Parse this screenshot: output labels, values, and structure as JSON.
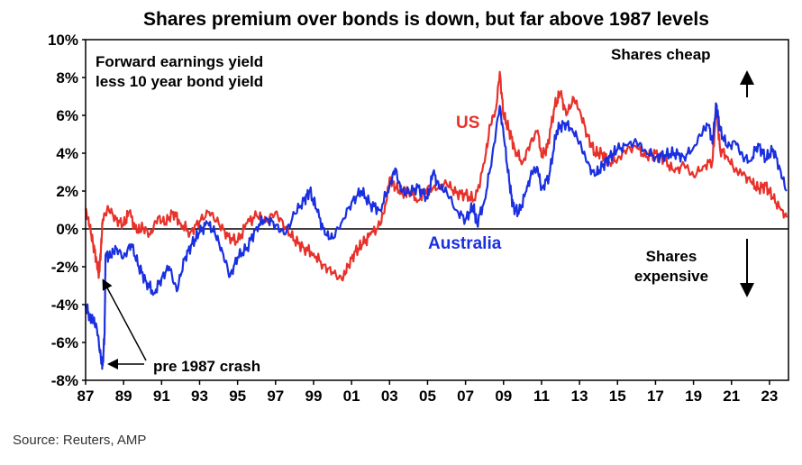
{
  "chart_data": {
    "type": "line",
    "title": "Shares premium over bonds is down, but far above 1987 levels",
    "ylabel": "Forward earnings yield less 10 year bond yield",
    "ylim": [
      -8,
      10
    ],
    "xlim": [
      1987,
      2024
    ],
    "y_ticks": [
      "10%",
      "8%",
      "6%",
      "4%",
      "2%",
      "0%",
      "-2%",
      "-4%",
      "-6%",
      "-8%"
    ],
    "y_tick_values": [
      10,
      8,
      6,
      4,
      2,
      0,
      -2,
      -4,
      -6,
      -8
    ],
    "x_ticks": [
      "87",
      "89",
      "91",
      "93",
      "95",
      "97",
      "99",
      "01",
      "03",
      "05",
      "07",
      "09",
      "11",
      "13",
      "15",
      "17",
      "19",
      "21",
      "23"
    ],
    "x_tick_values": [
      1987,
      1989,
      1991,
      1993,
      1995,
      1997,
      1999,
      2001,
      2003,
      2005,
      2007,
      2009,
      2011,
      2013,
      2015,
      2017,
      2019,
      2021,
      2023
    ],
    "legend_text": [
      "Forward earnings yield",
      "less 10 year bond yield"
    ],
    "annotations": {
      "shares_cheap": "Shares cheap",
      "shares_expensive_line1": "Shares",
      "shares_expensive_line2": "expensive",
      "crash": "pre 1987 crash"
    },
    "series": [
      {
        "name": "US",
        "color": "#e8312a",
        "points": [
          [
            1987.0,
            1.0
          ],
          [
            1987.2,
            0.2
          ],
          [
            1987.4,
            -0.8
          ],
          [
            1987.6,
            -1.8
          ],
          [
            1987.7,
            -2.4
          ],
          [
            1987.8,
            -1.2
          ],
          [
            1987.9,
            0.5
          ],
          [
            1988.2,
            1.1
          ],
          [
            1988.6,
            0.5
          ],
          [
            1989.0,
            0.2
          ],
          [
            1989.3,
            0.9
          ],
          [
            1989.7,
            -0.2
          ],
          [
            1990.0,
            0.1
          ],
          [
            1990.4,
            -0.3
          ],
          [
            1990.8,
            0.6
          ],
          [
            1991.2,
            0.3
          ],
          [
            1991.6,
            0.9
          ],
          [
            1992.0,
            0.3
          ],
          [
            1992.5,
            -0.2
          ],
          [
            1993.0,
            0.4
          ],
          [
            1993.5,
            0.9
          ],
          [
            1994.0,
            0.3
          ],
          [
            1994.5,
            -0.4
          ],
          [
            1995.0,
            -0.7
          ],
          [
            1995.5,
            0.3
          ],
          [
            1996.0,
            0.7
          ],
          [
            1996.5,
            0.4
          ],
          [
            1997.0,
            0.9
          ],
          [
            1997.5,
            0.1
          ],
          [
            1998.0,
            -0.6
          ],
          [
            1998.5,
            -1.0
          ],
          [
            1999.0,
            -1.3
          ],
          [
            1999.5,
            -1.9
          ],
          [
            2000.0,
            -2.3
          ],
          [
            2000.5,
            -2.7
          ],
          [
            2000.8,
            -2.0
          ],
          [
            2001.2,
            -1.2
          ],
          [
            2001.6,
            -0.8
          ],
          [
            2002.0,
            -0.3
          ],
          [
            2002.5,
            0.2
          ],
          [
            2002.8,
            1.3
          ],
          [
            2003.0,
            2.7
          ],
          [
            2003.3,
            2.2
          ],
          [
            2003.7,
            1.9
          ],
          [
            2004.0,
            2.1
          ],
          [
            2004.5,
            1.5
          ],
          [
            2005.0,
            2.2
          ],
          [
            2005.5,
            2.1
          ],
          [
            2006.0,
            2.4
          ],
          [
            2006.5,
            1.9
          ],
          [
            2007.0,
            1.8
          ],
          [
            2007.5,
            1.5
          ],
          [
            2008.0,
            3.5
          ],
          [
            2008.3,
            5.5
          ],
          [
            2008.6,
            6.3
          ],
          [
            2008.8,
            8.3
          ],
          [
            2009.0,
            6.0
          ],
          [
            2009.3,
            5.2
          ],
          [
            2009.6,
            4.2
          ],
          [
            2010.0,
            3.5
          ],
          [
            2010.4,
            4.5
          ],
          [
            2010.8,
            5.2
          ],
          [
            2011.0,
            3.8
          ],
          [
            2011.3,
            4.3
          ],
          [
            2011.7,
            6.5
          ],
          [
            2012.0,
            7.2
          ],
          [
            2012.3,
            6.0
          ],
          [
            2012.7,
            6.9
          ],
          [
            2013.0,
            6.3
          ],
          [
            2013.4,
            5.0
          ],
          [
            2013.8,
            4.0
          ],
          [
            2014.2,
            4.0
          ],
          [
            2014.6,
            3.5
          ],
          [
            2015.0,
            3.7
          ],
          [
            2015.5,
            4.2
          ],
          [
            2016.0,
            4.3
          ],
          [
            2016.5,
            3.8
          ],
          [
            2017.0,
            4.0
          ],
          [
            2017.5,
            3.6
          ],
          [
            2018.0,
            3.0
          ],
          [
            2018.5,
            3.4
          ],
          [
            2019.0,
            2.8
          ],
          [
            2019.5,
            3.3
          ],
          [
            2020.0,
            3.6
          ],
          [
            2020.2,
            6.4
          ],
          [
            2020.4,
            4.2
          ],
          [
            2020.8,
            3.8
          ],
          [
            2021.2,
            3.1
          ],
          [
            2021.6,
            2.9
          ],
          [
            2022.0,
            2.5
          ],
          [
            2022.4,
            2.1
          ],
          [
            2022.8,
            2.3
          ],
          [
            2023.2,
            1.6
          ],
          [
            2023.6,
            1.0
          ],
          [
            2023.9,
            0.6
          ]
        ]
      },
      {
        "name": "Australia",
        "color": "#1a2fe0",
        "points": [
          [
            1987.0,
            -4.0
          ],
          [
            1987.2,
            -4.6
          ],
          [
            1987.4,
            -4.8
          ],
          [
            1987.6,
            -5.3
          ],
          [
            1987.8,
            -6.8
          ],
          [
            1987.9,
            -7.2
          ],
          [
            1988.0,
            -5.5
          ],
          [
            1988.05,
            -1.4
          ],
          [
            1988.3,
            -1.5
          ],
          [
            1988.6,
            -1.0
          ],
          [
            1989.0,
            -1.5
          ],
          [
            1989.4,
            -0.8
          ],
          [
            1989.8,
            -2.0
          ],
          [
            1990.2,
            -2.8
          ],
          [
            1990.6,
            -3.4
          ],
          [
            1991.0,
            -2.6
          ],
          [
            1991.4,
            -2.0
          ],
          [
            1991.8,
            -3.3
          ],
          [
            1992.2,
            -1.6
          ],
          [
            1992.6,
            -0.8
          ],
          [
            1993.0,
            -0.2
          ],
          [
            1993.4,
            0.3
          ],
          [
            1993.8,
            -0.2
          ],
          [
            1994.2,
            -1.2
          ],
          [
            1994.6,
            -2.5
          ],
          [
            1995.0,
            -1.5
          ],
          [
            1995.5,
            -1.0
          ],
          [
            1996.0,
            0.1
          ],
          [
            1996.5,
            0.6
          ],
          [
            1997.0,
            0.2
          ],
          [
            1997.5,
            -0.3
          ],
          [
            1998.0,
            0.8
          ],
          [
            1998.5,
            1.5
          ],
          [
            1998.8,
            2.0
          ],
          [
            1999.2,
            0.9
          ],
          [
            1999.6,
            -0.3
          ],
          [
            2000.0,
            -0.5
          ],
          [
            2000.5,
            0.4
          ],
          [
            2001.0,
            1.4
          ],
          [
            2001.5,
            2.0
          ],
          [
            2002.0,
            1.3
          ],
          [
            2002.5,
            1.0
          ],
          [
            2003.0,
            2.3
          ],
          [
            2003.3,
            3.2
          ],
          [
            2003.6,
            2.0
          ],
          [
            2004.0,
            1.9
          ],
          [
            2004.5,
            2.2
          ],
          [
            2005.0,
            1.6
          ],
          [
            2005.3,
            3.0
          ],
          [
            2005.6,
            2.2
          ],
          [
            2006.0,
            2.0
          ],
          [
            2006.5,
            1.0
          ],
          [
            2007.0,
            0.5
          ],
          [
            2007.4,
            1.2
          ],
          [
            2007.6,
            0.3
          ],
          [
            2008.0,
            1.5
          ],
          [
            2008.4,
            3.8
          ],
          [
            2008.8,
            6.5
          ],
          [
            2009.0,
            5.0
          ],
          [
            2009.3,
            2.5
          ],
          [
            2009.5,
            1.2
          ],
          [
            2009.8,
            0.8
          ],
          [
            2010.2,
            2.0
          ],
          [
            2010.5,
            3.0
          ],
          [
            2010.8,
            3.2
          ],
          [
            2011.0,
            2.1
          ],
          [
            2011.4,
            2.8
          ],
          [
            2011.8,
            5.2
          ],
          [
            2012.2,
            5.6
          ],
          [
            2012.6,
            5.3
          ],
          [
            2013.0,
            4.6
          ],
          [
            2013.4,
            3.5
          ],
          [
            2013.8,
            2.8
          ],
          [
            2014.2,
            3.3
          ],
          [
            2014.6,
            3.8
          ],
          [
            2015.0,
            4.2
          ],
          [
            2015.5,
            4.4
          ],
          [
            2016.0,
            4.6
          ],
          [
            2016.5,
            4.1
          ],
          [
            2017.0,
            3.8
          ],
          [
            2017.5,
            3.9
          ],
          [
            2018.0,
            4.0
          ],
          [
            2018.5,
            3.8
          ],
          [
            2019.0,
            4.3
          ],
          [
            2019.5,
            5.2
          ],
          [
            2019.8,
            5.5
          ],
          [
            2020.0,
            4.5
          ],
          [
            2020.2,
            6.6
          ],
          [
            2020.4,
            5.2
          ],
          [
            2020.8,
            4.3
          ],
          [
            2021.2,
            4.6
          ],
          [
            2021.6,
            3.8
          ],
          [
            2022.0,
            3.6
          ],
          [
            2022.4,
            4.5
          ],
          [
            2022.8,
            3.7
          ],
          [
            2023.2,
            4.2
          ],
          [
            2023.6,
            3.0
          ],
          [
            2023.9,
            2.0
          ]
        ]
      }
    ],
    "series_labels": {
      "us": "US",
      "australia": "Australia"
    }
  },
  "source": "Source: Reuters, AMP"
}
